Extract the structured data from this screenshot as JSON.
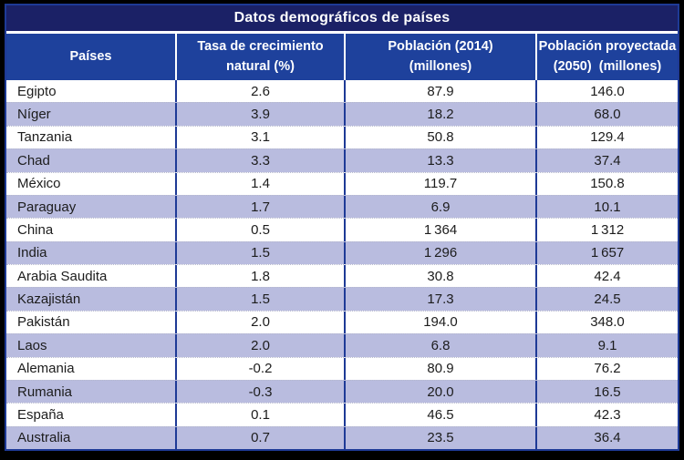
{
  "chart_data": {
    "type": "table",
    "title": "Datos demográficos de países",
    "columns": [
      "Países",
      "Tasa de crecimiento natural (%)",
      "Población (2014) (millones)",
      "Población proyectada (2050) (millones)"
    ],
    "rows": [
      [
        "Egipto",
        2.6,
        87.9,
        146.0
      ],
      [
        "Níger",
        3.9,
        18.2,
        68.0
      ],
      [
        "Tanzania",
        3.1,
        50.8,
        129.4
      ],
      [
        "Chad",
        3.3,
        13.3,
        37.4
      ],
      [
        "México",
        1.4,
        119.7,
        150.8
      ],
      [
        "Paraguay",
        1.7,
        6.9,
        10.1
      ],
      [
        "China",
        0.5,
        1364,
        1312
      ],
      [
        "India",
        1.5,
        1296,
        1657
      ],
      [
        "Arabia Saudita",
        1.8,
        30.8,
        42.4
      ],
      [
        "Kazajistán",
        1.5,
        17.3,
        24.5
      ],
      [
        "Pakistán",
        2.0,
        194.0,
        348.0
      ],
      [
        "Laos",
        2.0,
        6.8,
        9.1
      ],
      [
        "Alemania",
        -0.2,
        80.9,
        76.2
      ],
      [
        "Rumania",
        -0.3,
        20.0,
        16.5
      ],
      [
        "España",
        0.1,
        46.5,
        42.3
      ],
      [
        "Australia",
        0.7,
        23.5,
        36.4
      ]
    ]
  },
  "table": {
    "title": "Datos demográficos de países",
    "columns": [
      {
        "line1": "Países",
        "line2": ""
      },
      {
        "line1": "Tasa de crecimiento",
        "line2": "natural (%)"
      },
      {
        "line1": "Población (2014)",
        "line2": "(millones)"
      },
      {
        "line1": "Población proyectada",
        "line2": "(2050)  (millones)"
      }
    ],
    "rows": [
      {
        "country": "Egipto",
        "growth_rate": "2.6",
        "population_2014": "87.9",
        "population_2050": "146.0"
      },
      {
        "country": "Níger",
        "growth_rate": "3.9",
        "population_2014": "18.2",
        "population_2050": "68.0"
      },
      {
        "country": "Tanzania",
        "growth_rate": "3.1",
        "population_2014": "50.8",
        "population_2050": "129.4"
      },
      {
        "country": "Chad",
        "growth_rate": "3.3",
        "population_2014": "13.3",
        "population_2050": "37.4"
      },
      {
        "country": "México",
        "growth_rate": "1.4",
        "population_2014": "119.7",
        "population_2050": "150.8"
      },
      {
        "country": "Paraguay",
        "growth_rate": "1.7",
        "population_2014": "6.9",
        "population_2050": "10.1"
      },
      {
        "country": "China",
        "growth_rate": "0.5",
        "population_2014": "1 364",
        "population_2050": "1 312"
      },
      {
        "country": "India",
        "growth_rate": "1.5",
        "population_2014": "1 296",
        "population_2050": "1 657"
      },
      {
        "country": "Arabia Saudita",
        "growth_rate": "1.8",
        "population_2014": "30.8",
        "population_2050": "42.4"
      },
      {
        "country": "Kazajistán",
        "growth_rate": "1.5",
        "population_2014": "17.3",
        "population_2050": "24.5"
      },
      {
        "country": "Pakistán",
        "growth_rate": "2.0",
        "population_2014": "194.0",
        "population_2050": "348.0"
      },
      {
        "country": "Laos",
        "growth_rate": "2.0",
        "population_2014": "6.8",
        "population_2050": "9.1"
      },
      {
        "country": "Alemania",
        "growth_rate": "-0.2",
        "population_2014": "80.9",
        "population_2050": "76.2"
      },
      {
        "country": "Rumania",
        "growth_rate": "-0.3",
        "population_2014": "20.0",
        "population_2050": "16.5"
      },
      {
        "country": "España",
        "growth_rate": "0.1",
        "population_2014": "46.5",
        "population_2050": "42.3"
      },
      {
        "country": "Australia",
        "growth_rate": "0.7",
        "population_2014": "23.5",
        "population_2050": "36.4"
      }
    ]
  },
  "colors": {
    "outer_frame": "#000000",
    "title_bar": "#1b2166",
    "header_bar": "#1e419c",
    "row_alt": "#b9bcdf",
    "divider_navy": "#1e3a96",
    "header_divider": "#ffffff",
    "text_dark": "#1c1c1c",
    "text_light": "#ffffff"
  }
}
